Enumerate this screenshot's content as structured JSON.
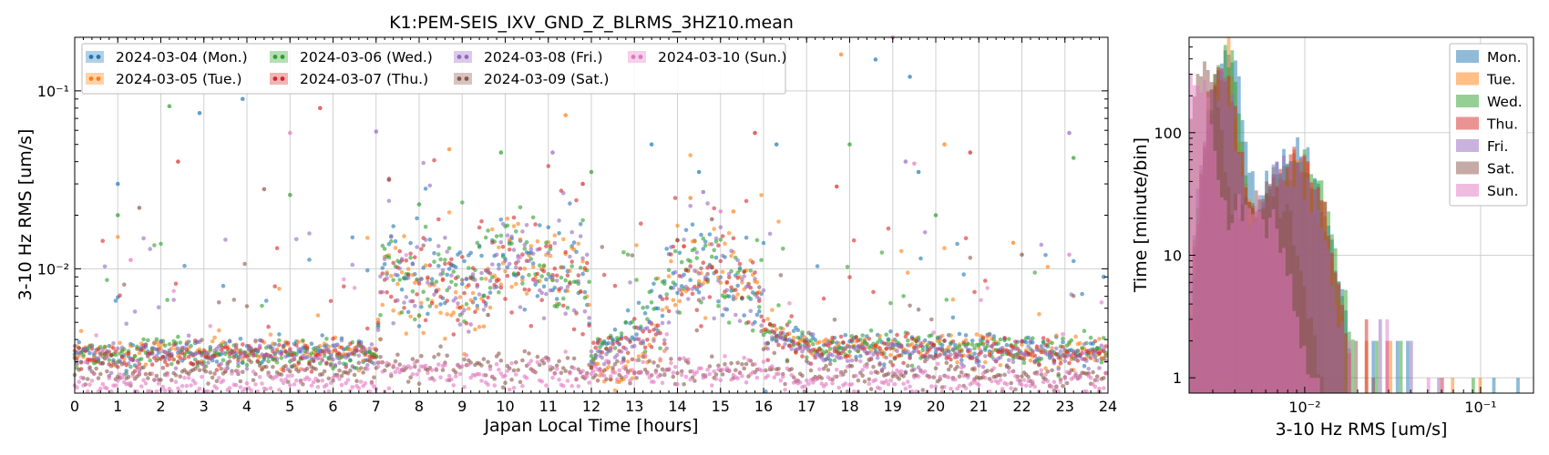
{
  "chart_data": [
    {
      "type": "scatter",
      "title": "K1:PEM-SEIS_IXV_GND_Z_BLRMS_3HZ10.mean",
      "xlabel": "Japan Local Time [hours]",
      "ylabel": "3-10 Hz RMS [um/s]",
      "xlim": [
        0,
        24
      ],
      "ylim": [
        0.002,
        0.2
      ],
      "yscale": "log",
      "grid": true,
      "legend_position": "top-left",
      "x_ticks": [
        "0",
        "1",
        "2",
        "3",
        "4",
        "5",
        "6",
        "7",
        "8",
        "9",
        "10",
        "11",
        "12",
        "13",
        "14",
        "15",
        "16",
        "17",
        "18",
        "19",
        "20",
        "21",
        "22",
        "23",
        "24"
      ],
      "y_ticks": [
        {
          "value": 0.01,
          "label": "10⁻²"
        },
        {
          "value": 0.1,
          "label": "10⁻¹"
        }
      ],
      "series": [
        {
          "name": "2024-03-04 (Mon.)",
          "color": "#1f77b4",
          "baseline": [
            [
              0,
              0.0034
            ],
            [
              7,
              0.0034
            ],
            [
              7.2,
              0.01
            ],
            [
              9.5,
              0.0085
            ],
            [
              10,
              0.013
            ],
            [
              11,
              0.0095
            ],
            [
              11.9,
              0.0095
            ],
            [
              12,
              0.0034
            ],
            [
              13,
              0.0042
            ],
            [
              13.5,
              0.006
            ],
            [
              14,
              0.0095
            ],
            [
              15,
              0.0095
            ],
            [
              15.9,
              0.0075
            ],
            [
              16,
              0.0046
            ],
            [
              17,
              0.0038
            ],
            [
              24,
              0.0034
            ]
          ],
          "outliers": [
            [
              1.0,
              0.03
            ],
            [
              2.9,
              0.075
            ],
            [
              3.9,
              0.09
            ],
            [
              13.4,
              0.05
            ],
            [
              14.5,
              0.035
            ],
            [
              16.3,
              0.05
            ],
            [
              18.6,
              0.15
            ],
            [
              19.4,
              0.12
            ],
            [
              19.6,
              0.035
            ],
            [
              23.9,
              0.009
            ]
          ]
        },
        {
          "name": "2024-03-05 (Tue.)",
          "color": "#ff7f0e",
          "baseline": [
            [
              0,
              0.0033
            ],
            [
              7,
              0.0035
            ],
            [
              7.2,
              0.0095
            ],
            [
              9.5,
              0.0055
            ],
            [
              10,
              0.012
            ],
            [
              11,
              0.01
            ],
            [
              11.9,
              0.009
            ],
            [
              12,
              0.0028
            ],
            [
              12.5,
              0.0023
            ],
            [
              13,
              0.0026
            ],
            [
              13.5,
              0.0045
            ],
            [
              14,
              0.009
            ],
            [
              15,
              0.0095
            ],
            [
              15.9,
              0.0075
            ],
            [
              16,
              0.0048
            ],
            [
              17,
              0.0037
            ],
            [
              24,
              0.0034
            ]
          ],
          "outliers": [
            [
              8.7,
              0.047
            ],
            [
              11.4,
              0.073
            ],
            [
              14.3,
              0.025
            ],
            [
              15.3,
              0.021
            ],
            [
              17.8,
              0.16
            ],
            [
              20.2,
              0.05
            ],
            [
              21.8,
              0.014
            ]
          ]
        },
        {
          "name": "2024-03-06 (Wed.)",
          "color": "#2ca02c",
          "baseline": [
            [
              0,
              0.0033
            ],
            [
              7,
              0.0034
            ],
            [
              7.2,
              0.0095
            ],
            [
              9.5,
              0.0085
            ],
            [
              10,
              0.013
            ],
            [
              11,
              0.0085
            ],
            [
              11.9,
              0.009
            ],
            [
              12,
              0.0035
            ],
            [
              13,
              0.0045
            ],
            [
              13.5,
              0.005
            ],
            [
              14,
              0.01
            ],
            [
              15,
              0.01
            ],
            [
              15.9,
              0.0075
            ],
            [
              16,
              0.0045
            ],
            [
              17,
              0.0037
            ],
            [
              24,
              0.0035
            ]
          ],
          "outliers": [
            [
              1.0,
              0.02
            ],
            [
              2.2,
              0.082
            ],
            [
              5.0,
              0.026
            ],
            [
              8.0,
              0.023
            ],
            [
              9.9,
              0.045
            ],
            [
              12.0,
              0.035
            ],
            [
              18.0,
              0.05
            ],
            [
              20.0,
              0.02
            ],
            [
              23.2,
              0.042
            ]
          ]
        },
        {
          "name": "2024-03-07 (Thu.)",
          "color": "#d62728",
          "baseline": [
            [
              0,
              0.0032
            ],
            [
              7,
              0.0034
            ],
            [
              7.2,
              0.009
            ],
            [
              9.5,
              0.0085
            ],
            [
              10,
              0.0125
            ],
            [
              11,
              0.009
            ],
            [
              11.9,
              0.0095
            ],
            [
              12,
              0.0033
            ],
            [
              13,
              0.004
            ],
            [
              13.5,
              0.0042
            ],
            [
              14,
              0.009
            ],
            [
              15,
              0.009
            ],
            [
              15.9,
              0.0072
            ],
            [
              16,
              0.0047
            ],
            [
              17,
              0.0036
            ],
            [
              24,
              0.0034
            ]
          ],
          "outliers": [
            [
              2.4,
              0.04
            ],
            [
              5.7,
              0.08
            ],
            [
              11.8,
              0.03
            ],
            [
              15.8,
              0.058
            ],
            [
              17.7,
              0.029
            ],
            [
              20.8,
              0.045
            ]
          ]
        },
        {
          "name": "2024-03-08 (Fri.)",
          "color": "#9467bd",
          "baseline": [
            [
              0,
              0.0032
            ],
            [
              7,
              0.0033
            ],
            [
              7.2,
              0.0095
            ],
            [
              9.5,
              0.0075
            ],
            [
              10,
              0.0115
            ],
            [
              11,
              0.009
            ],
            [
              11.9,
              0.0085
            ],
            [
              12,
              0.0032
            ],
            [
              13,
              0.0038
            ],
            [
              13.5,
              0.0045
            ],
            [
              14,
              0.0085
            ],
            [
              15,
              0.009
            ],
            [
              15.9,
              0.007
            ],
            [
              16,
              0.0042
            ],
            [
              17,
              0.0034
            ],
            [
              24,
              0.0032
            ]
          ],
          "outliers": [
            [
              7.0,
              0.059
            ],
            [
              11.1,
              0.045
            ],
            [
              14.6,
              0.027
            ],
            [
              19.3,
              0.04
            ],
            [
              23.1,
              0.058
            ]
          ]
        },
        {
          "name": "2024-03-09 (Sat.)",
          "color": "#8c564b",
          "baseline": [
            [
              0,
              0.0026
            ],
            [
              7,
              0.0027
            ],
            [
              7.2,
              0.0029
            ],
            [
              11.9,
              0.0028
            ],
            [
              12,
              0.0027
            ],
            [
              16,
              0.0027
            ],
            [
              17,
              0.0026
            ],
            [
              24,
              0.0024
            ]
          ],
          "outliers": [
            [
              1.5,
              0.022
            ],
            [
              4.4,
              0.028
            ],
            [
              7.3,
              0.032
            ],
            [
              9.6,
              0.0055
            ],
            [
              14.8,
              0.019
            ],
            [
              22.0,
              0.012
            ]
          ]
        },
        {
          "name": "2024-03-10 (Sun.)",
          "color": "#e377c2",
          "baseline": [
            [
              0,
              0.0022
            ],
            [
              7,
              0.0023
            ],
            [
              7.2,
              0.0027
            ],
            [
              11.9,
              0.0025
            ],
            [
              12,
              0.0027
            ],
            [
              16,
              0.0026
            ],
            [
              17,
              0.0024
            ],
            [
              24,
              0.0023
            ]
          ],
          "outliers": [
            [
              1.3,
              0.0112
            ],
            [
              5.0,
              0.058
            ],
            [
              15.0,
              0.021
            ],
            [
              19.0,
              0.2
            ],
            [
              19.5,
              0.039
            ],
            [
              23.1,
              0.012
            ]
          ]
        }
      ]
    },
    {
      "type": "bar",
      "subtype": "histogram",
      "xlabel": "3-10 Hz RMS [um/s]",
      "ylabel": "Time [minute/bin]",
      "xscale": "log",
      "yscale": "log",
      "xlim": [
        0.0022,
        0.2
      ],
      "ylim": [
        0.75,
        600
      ],
      "grid": true,
      "legend_position": "top-right",
      "x_ticks": [
        {
          "value": 0.01,
          "label": "10⁻²"
        },
        {
          "value": 0.1,
          "label": "10⁻¹"
        }
      ],
      "y_ticks": [
        {
          "value": 1,
          "label": "1"
        },
        {
          "value": 10,
          "label": "10"
        },
        {
          "value": 100,
          "label": "100"
        }
      ],
      "series": [
        {
          "name": "Mon.",
          "color": "#1f77b4",
          "peak_x": 0.0036,
          "peak": 410,
          "shoulder_x": 0.009,
          "shoulder": 65,
          "cutoff": 0.018,
          "tail": [
            [
              0.025,
              2
            ],
            [
              0.033,
              2
            ],
            [
              0.038,
              2
            ],
            [
              0.12,
              1
            ],
            [
              0.16,
              1
            ]
          ]
        },
        {
          "name": "Tue.",
          "color": "#ff7f0e",
          "peak_x": 0.0034,
          "peak": 330,
          "shoulder_x": 0.009,
          "shoulder": 55,
          "cutoff": 0.017,
          "tail": [
            [
              0.022,
              2
            ],
            [
              0.031,
              2
            ],
            [
              0.07,
              1
            ],
            [
              0.1,
              1
            ]
          ]
        },
        {
          "name": "Wed.",
          "color": "#2ca02c",
          "peak_x": 0.0035,
          "peak": 420,
          "shoulder_x": 0.0095,
          "shoulder": 60,
          "cutoff": 0.019,
          "tail": [
            [
              0.026,
              2
            ],
            [
              0.036,
              2
            ],
            [
              0.09,
              1
            ]
          ]
        },
        {
          "name": "Thu.",
          "color": "#d62728",
          "peak_x": 0.0034,
          "peak": 330,
          "shoulder_x": 0.009,
          "shoulder": 55,
          "cutoff": 0.018,
          "tail": [
            [
              0.022,
              3
            ],
            [
              0.03,
              2
            ],
            [
              0.06,
              1
            ]
          ]
        },
        {
          "name": "Fri.",
          "color": "#9467bd",
          "peak_x": 0.0033,
          "peak": 300,
          "shoulder_x": 0.0085,
          "shoulder": 50,
          "cutoff": 0.017,
          "tail": [
            [
              0.027,
              3
            ],
            [
              0.04,
              2
            ],
            [
              0.058,
              1
            ]
          ]
        },
        {
          "name": "Sat.",
          "color": "#8c564b",
          "peak_x": 0.0027,
          "peak": 350,
          "shoulder_x": 0.006,
          "shoulder": 30,
          "cutoff": 0.013,
          "tail": [
            [
              0.02,
              2
            ],
            [
              0.025,
              1
            ]
          ]
        },
        {
          "name": "Sun.",
          "color": "#e377c2",
          "peak_x": 0.0024,
          "peak": 330,
          "shoulder_x": 0.005,
          "shoulder": 25,
          "cutoff": 0.012,
          "tail": [
            [
              0.018,
              2
            ],
            [
              0.03,
              3
            ],
            [
              0.05,
              1
            ]
          ]
        }
      ]
    }
  ]
}
